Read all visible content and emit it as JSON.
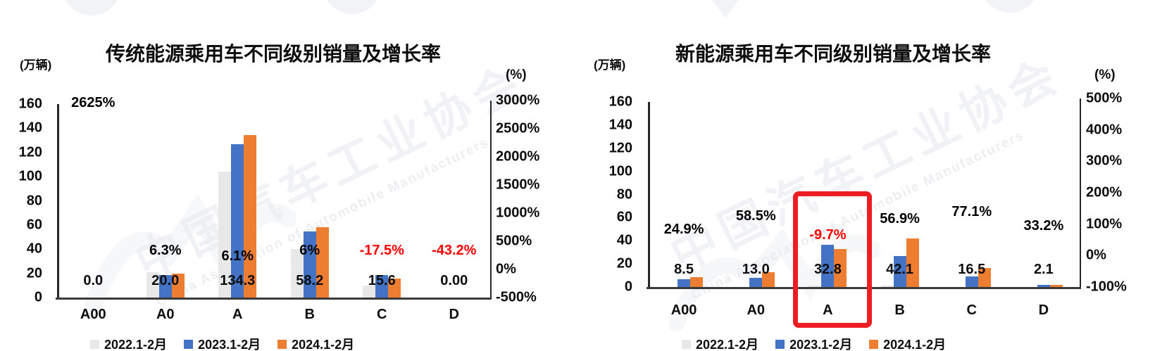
{
  "watermark": {
    "cn": "中国汽车工业协会",
    "en": "China Association of Automobile Manufacturers"
  },
  "colors": {
    "series": [
      "#e8e8e8",
      "#4472c4",
      "#ed7d31"
    ],
    "negative_label": "#ff0000",
    "highlight_box": "#ee1d23",
    "axis": "#262626"
  },
  "legend_labels": [
    "2022.1-2月",
    "2023.1-2月",
    "2024.1-2月"
  ],
  "chart_data": [
    {
      "type": "bar",
      "title": "传统能源乘用车不同级别销量及增长率",
      "left_axis_unit": "(万辆)",
      "right_axis_unit": "(%)",
      "left_axis": {
        "min": 0,
        "max": 160,
        "ticks": [
          "160",
          "140",
          "120",
          "100",
          "80",
          "60",
          "40",
          "20",
          "0"
        ]
      },
      "right_axis": {
        "ticks": [
          "3000%",
          "2500%",
          "2000%",
          "1500%",
          "1000%",
          "500%",
          "0%",
          "-500%"
        ]
      },
      "categories": [
        "A00",
        "A0",
        "A",
        "B",
        "C",
        "D"
      ],
      "series": [
        {
          "name": "2022.1-2月",
          "color": "#e8e8e8",
          "values": [
            0,
            21,
            104,
            40,
            10,
            0
          ]
        },
        {
          "name": "2023.1-2月",
          "color": "#4472c4",
          "values": [
            0,
            18.8,
            126.6,
            54.9,
            18.9,
            0
          ]
        },
        {
          "name": "2024.1-2月",
          "color": "#ed7d31",
          "values": [
            0,
            20.0,
            134.3,
            58.2,
            15.6,
            0
          ]
        }
      ],
      "value_labels": [
        "0.0",
        "20.0",
        "134.3",
        "58.2",
        "15.6",
        "0.00"
      ],
      "growth_labels": [
        {
          "text": "2625%",
          "color": "#000000"
        },
        {
          "text": "6.3%",
          "color": "#000000"
        },
        {
          "text": "6.1%",
          "color": "#000000"
        },
        {
          "text": "6%",
          "color": "#000000"
        },
        {
          "text": "-17.5%",
          "color": "#ff0000"
        },
        {
          "text": "-43.2%",
          "color": "#ff0000"
        }
      ],
      "legend": [
        "2022.1-2月",
        "2023.1-2月",
        "2024.1-2月"
      ],
      "legend_position": "bottom"
    },
    {
      "type": "bar",
      "title": "新能源乘用车不同级别销量及增长率",
      "left_axis_unit": "(万辆)",
      "right_axis_unit": "(%)",
      "left_axis": {
        "min": 0,
        "max": 160,
        "ticks": [
          "160",
          "140",
          "120",
          "100",
          "80",
          "60",
          "40",
          "20",
          "0"
        ]
      },
      "right_axis": {
        "ticks": [
          "500%",
          "400%",
          "300%",
          "200%",
          "100%",
          "0%",
          "-100%"
        ]
      },
      "categories": [
        "A00",
        "A0",
        "A",
        "B",
        "C",
        "D"
      ],
      "series": [
        {
          "name": "2022.1-2月",
          "color": "#e8e8e8",
          "values": [
            0,
            0,
            1.5,
            1.2,
            0,
            0
          ]
        },
        {
          "name": "2023.1-2月",
          "color": "#4472c4",
          "values": [
            6.8,
            8.2,
            36.3,
            26.8,
            9.3,
            1.6
          ]
        },
        {
          "name": "2024.1-2月",
          "color": "#ed7d31",
          "values": [
            8.5,
            13.0,
            32.8,
            42.1,
            16.5,
            2.1
          ]
        }
      ],
      "value_labels": [
        "8.5",
        "13.0",
        "32.8",
        "42.1",
        "16.5",
        "2.1"
      ],
      "growth_labels": [
        {
          "text": "24.9%",
          "color": "#000000"
        },
        {
          "text": "58.5%",
          "color": "#000000"
        },
        {
          "text": "-9.7%",
          "color": "#ff0000"
        },
        {
          "text": "56.9%",
          "color": "#000000"
        },
        {
          "text": "77.1%",
          "color": "#000000"
        },
        {
          "text": "33.2%",
          "color": "#000000"
        }
      ],
      "legend": [
        "2022.1-2月",
        "2023.1-2月",
        "2024.1-2月"
      ],
      "legend_position": "bottom",
      "highlight": {
        "category": "A",
        "color": "#ee1d23"
      }
    }
  ]
}
